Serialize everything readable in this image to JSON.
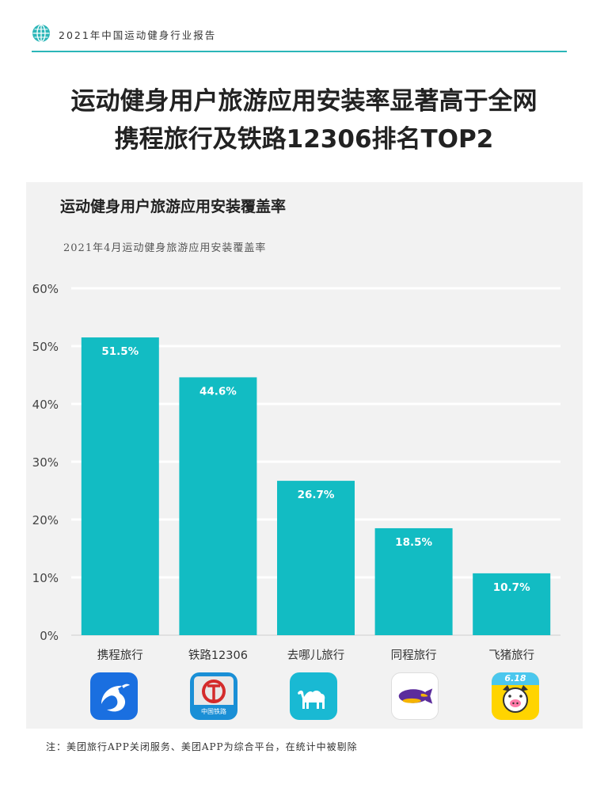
{
  "header": {
    "text": "2021年中国运动健身行业报告",
    "accent": "#2bb6b8"
  },
  "title": {
    "line1": "运动健身用户旅游应用安装率显著高于全网",
    "line2": "携程旅行及铁路12306排名TOP2"
  },
  "chart": {
    "heading": "运动健身用户旅游应用安装覆盖率",
    "subtitle": "2021年4月运动健身旅游应用安装覆盖率"
  },
  "chart_data": {
    "type": "bar",
    "categories": [
      "携程旅行",
      "铁路12306",
      "去哪儿旅行",
      "同程旅行",
      "飞猪旅行"
    ],
    "values": [
      51.5,
      44.6,
      26.7,
      18.5,
      10.7
    ],
    "data_labels": [
      "51.5%",
      "44.6%",
      "26.7%",
      "18.5%",
      "10.7%"
    ],
    "yticks": [
      "0%",
      "10%",
      "20%",
      "30%",
      "40%",
      "50%",
      "60%"
    ],
    "ylim": [
      0,
      60
    ],
    "grid": true,
    "bar_color": "#12bcc3"
  },
  "app_icons": [
    {
      "name": "ctrip-dolphin-icon",
      "bg": "#1a6fe0"
    },
    {
      "name": "railway-12306-icon",
      "bg": "#1a8fd6",
      "text": "中国铁路"
    },
    {
      "name": "qunar-camel-icon",
      "bg": "#19b9d3"
    },
    {
      "name": "tongcheng-airship-icon",
      "bg": "#ffffff"
    },
    {
      "name": "fliggy-pig-icon",
      "bg": "#ffd400",
      "text": "6.18"
    }
  ],
  "footnote": "注：美团旅行APP关闭服务、美团APP为综合平台，在统计中被剔除"
}
